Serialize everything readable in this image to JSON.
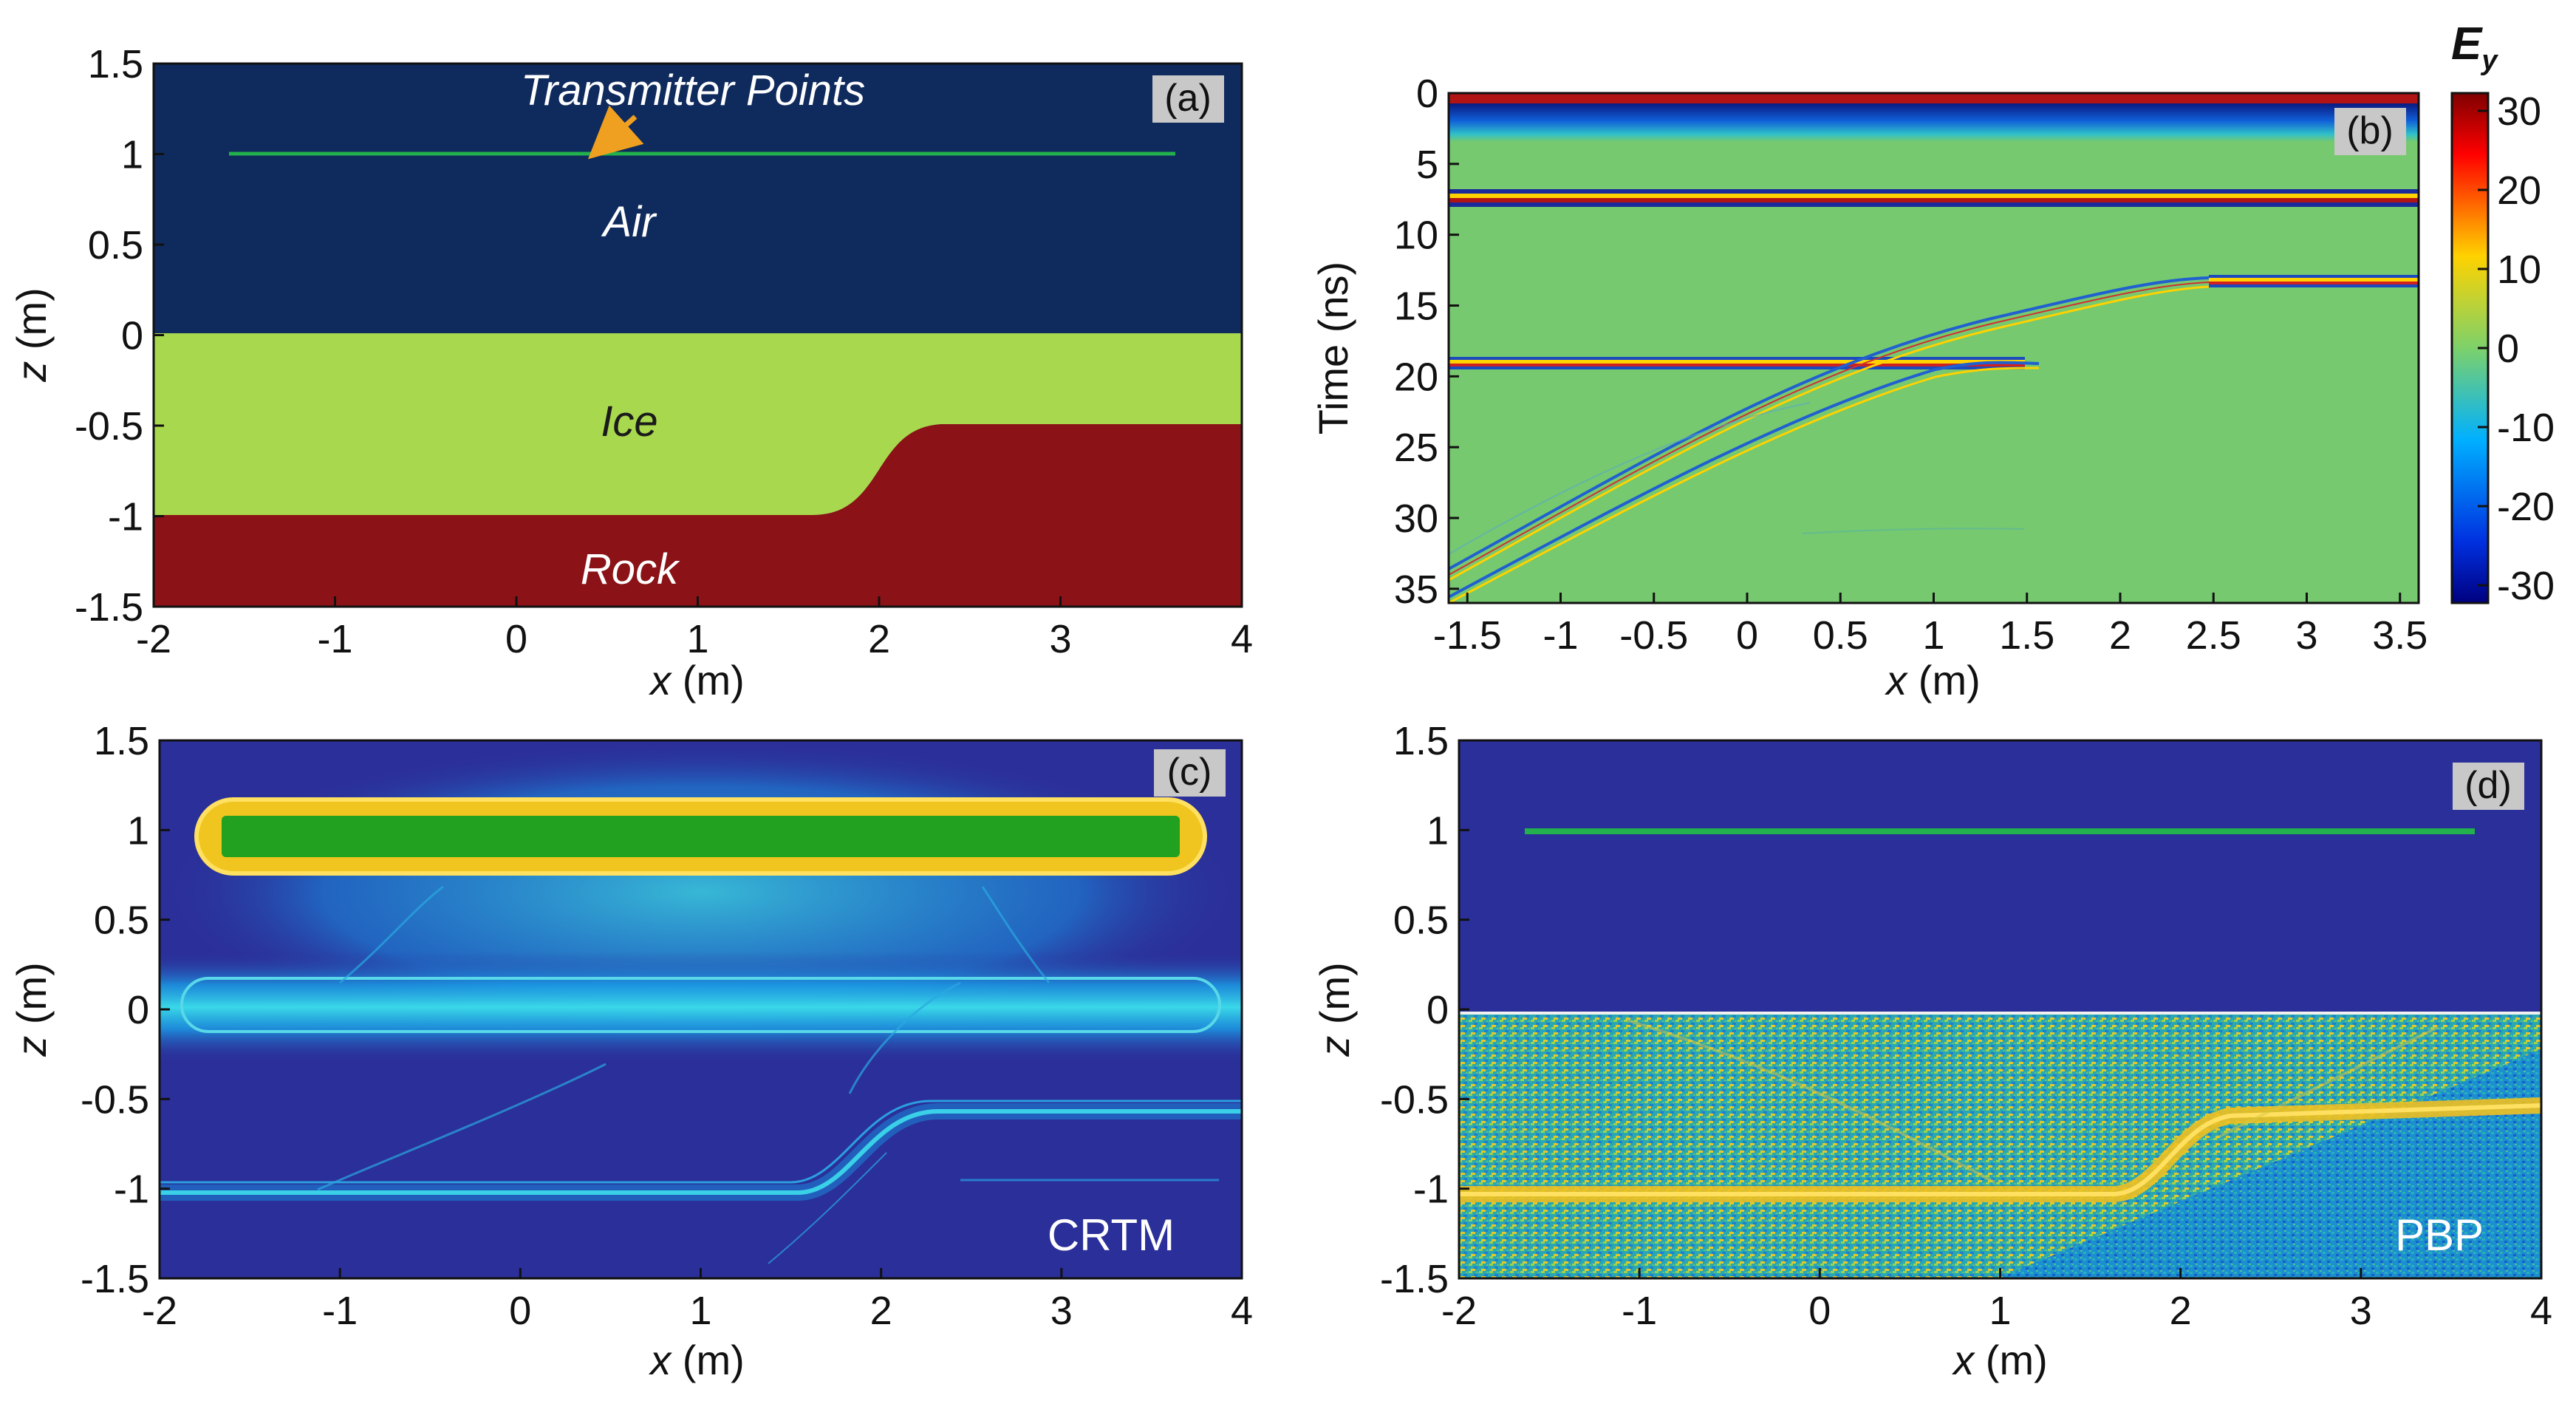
{
  "chart_data": [
    {
      "id": "a",
      "type": "model-section",
      "panel_label": "(a)",
      "xlabel_var": "x",
      "xlabel_unit": " (m)",
      "ylabel_var": "z",
      "ylabel_unit": " (m)",
      "xlim": [
        -2,
        4
      ],
      "ylim": [
        -1.5,
        1.5
      ],
      "xticks": [
        "-2",
        "-1",
        "0",
        "1",
        "2",
        "3",
        "4"
      ],
      "yticks": [
        "1.5",
        "1",
        "0.5",
        "0",
        "-0.5",
        "-1",
        "-1.5"
      ],
      "layers": [
        {
          "name": "Air",
          "color": "#0f2a5c"
        },
        {
          "name": "Ice",
          "color": "#a8d84e"
        },
        {
          "name": "Rock",
          "color": "#8b1216"
        }
      ],
      "interfaces": {
        "air_ice_z": 0,
        "ice_rock_left_z": -1.0,
        "ice_rock_right_z": -0.5,
        "step_x_start": 1.6,
        "step_x_end": 2.5
      },
      "transmitter_line": {
        "x_start": -1.6,
        "x_end": 3.6,
        "z": 1.0,
        "color": "#22b14c"
      },
      "annotations": {
        "transmitter": "Transmitter Points",
        "air": "Air",
        "ice": "Ice",
        "rock": "Rock",
        "arrow_color": "#f0a020"
      }
    },
    {
      "id": "b",
      "type": "heatmap-radargram",
      "panel_label": "(b)",
      "xlabel_var": "x",
      "xlabel_unit": " (m)",
      "ylabel": "Time (ns)",
      "xlim": [
        -1.6,
        3.6
      ],
      "ylim": [
        36,
        0
      ],
      "xticks": [
        "-1.5",
        "-1",
        "-0.5",
        "0",
        "0.5",
        "1",
        "1.5",
        "2",
        "2.5",
        "3",
        "3.5"
      ],
      "xtick_values": [
        -1.5,
        -1,
        -0.5,
        0,
        0.5,
        1,
        1.5,
        2,
        2.5,
        3,
        3.5
      ],
      "yticks": [
        "0",
        "5",
        "10",
        "15",
        "20",
        "25",
        "30",
        "35"
      ],
      "ytick_values": [
        0,
        5,
        10,
        15,
        20,
        25,
        30,
        35
      ],
      "events": [
        {
          "name": "direct wave",
          "t_ns": 0.5
        },
        {
          "name": "air-ice reflection",
          "t_ns": 7.5
        },
        {
          "name": "ice-rock reflection left",
          "t_ns": 19.3,
          "x_range": [
            -1.6,
            1.5
          ]
        },
        {
          "name": "ice-rock reflection right",
          "t_ns": 13.3,
          "x_range": [
            2.3,
            3.6
          ]
        }
      ],
      "colorbar": {
        "title_main": "E",
        "title_sub": "y",
        "range": [
          -30,
          30
        ],
        "ticks": [
          "30",
          "20",
          "10",
          "0",
          "-10",
          "-20",
          "-30"
        ],
        "tick_values": [
          30,
          20,
          10,
          0,
          -10,
          -20,
          -30
        ]
      }
    },
    {
      "id": "c",
      "type": "heatmap-image",
      "panel_label": "(c)",
      "method": "CRTM",
      "xlabel_var": "x",
      "xlabel_unit": " (m)",
      "ylabel_var": "z",
      "ylabel_unit": " (m)",
      "xlim": [
        -2,
        4
      ],
      "ylim": [
        -1.5,
        1.5
      ],
      "xticks": [
        "-2",
        "-1",
        "0",
        "1",
        "2",
        "3",
        "4"
      ],
      "yticks": [
        "1.5",
        "1",
        "0.5",
        "0",
        "-0.5",
        "-1",
        "-1.5"
      ],
      "features": {
        "source_line_z": 1.0,
        "air_ice_z": 0.0,
        "ice_rock_left_z": -1.0,
        "ice_rock_right_z": -0.5
      }
    },
    {
      "id": "d",
      "type": "heatmap-image",
      "panel_label": "(d)",
      "method": "PBP",
      "xlabel_var": "x",
      "xlabel_unit": " (m)",
      "ylabel_var": "z",
      "ylabel_unit": " (m)",
      "xlim": [
        -2,
        4
      ],
      "ylim": [
        -1.5,
        1.5
      ],
      "xticks": [
        "-2",
        "-1",
        "0",
        "1",
        "2",
        "3",
        "4"
      ],
      "yticks": [
        "1.5",
        "1",
        "0.5",
        "0",
        "-0.5",
        "-1",
        "-1.5"
      ],
      "features": {
        "source_line_z": 1.0,
        "source_x": [
          -1.6,
          3.6
        ],
        "air_ice_z": 0.0,
        "ice_rock_left_z": -1.0,
        "ice_rock_right_z": -0.5
      }
    }
  ]
}
